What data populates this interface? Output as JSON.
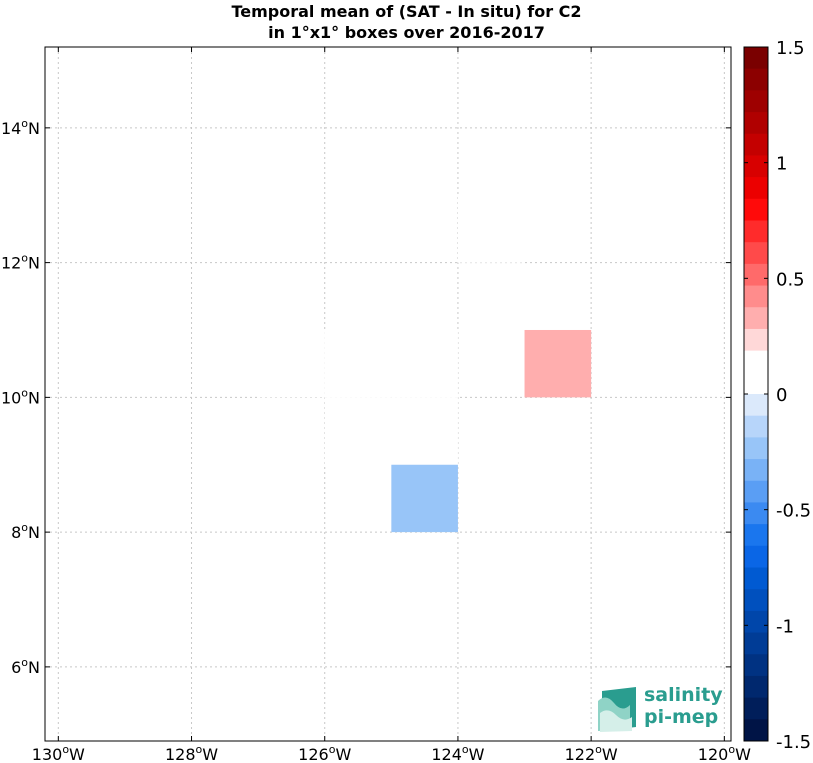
{
  "title": {
    "line1": "Temporal mean of (SAT - In situ) for C2",
    "line2": "in 1°x1° boxes over 2016-2017"
  },
  "logo": {
    "line1": "salinity",
    "line2": "pi-mep"
  },
  "chart_data": {
    "type": "heatmap",
    "xlim": [
      -130.2,
      -119.9
    ],
    "ylim": [
      4.9,
      15.2
    ],
    "x_ticks": [
      -130,
      -128,
      -126,
      -124,
      -122,
      -120
    ],
    "x_tick_labels": [
      "130°W",
      "128°W",
      "126°W",
      "124°W",
      "122°W",
      "120°W"
    ],
    "y_ticks": [
      6,
      8,
      10,
      12,
      14
    ],
    "y_tick_labels": [
      "6°N",
      "8°N",
      "10°N",
      "12°N",
      "14°N"
    ],
    "grid": true,
    "cells": [
      {
        "lon": -124,
        "lat": 12,
        "value": 0.15
      },
      {
        "lon": -127,
        "lat": 10,
        "value": 0.15
      },
      {
        "lon": -126,
        "lat": 10,
        "value": 0.15
      },
      {
        "lon": -125,
        "lat": 10,
        "value": 0.15
      },
      {
        "lon": -126,
        "lat": 9,
        "value": 0.15
      },
      {
        "lon": -125,
        "lat": 9,
        "value": 0.15
      },
      {
        "lon": -123,
        "lat": 10,
        "value": 0.35
      },
      {
        "lon": -125,
        "lat": 8,
        "value": -0.25
      }
    ],
    "colorbar": {
      "range": [
        -1.5,
        1.5
      ],
      "ticks": [
        1.5,
        1,
        0.5,
        0,
        -0.5,
        -1,
        -1.5
      ],
      "tick_labels": [
        "1.5",
        "1",
        "0.5",
        "0",
        "-0.5",
        "-1",
        "-1.5"
      ],
      "colors": [
        "#7a0000",
        "#8c0000",
        "#9e0000",
        "#b00000",
        "#c40000",
        "#d80000",
        "#ec0000",
        "#ff0a0a",
        "#ff2b2b",
        "#ff4a4a",
        "#ff6a6a",
        "#ff8c8c",
        "#ffaeae",
        "#ffd8d8",
        "#ffffff",
        "#ffffff",
        "#dbe9fb",
        "#b7d5fa",
        "#98c5f8",
        "#79b2f6",
        "#5a9ef4",
        "#3b8af1",
        "#1a76ee",
        "#0a66e6",
        "#005ad2",
        "#0050be",
        "#0046aa",
        "#003c96",
        "#003282",
        "#00286e",
        "#001e5a",
        "#001446"
      ]
    }
  }
}
